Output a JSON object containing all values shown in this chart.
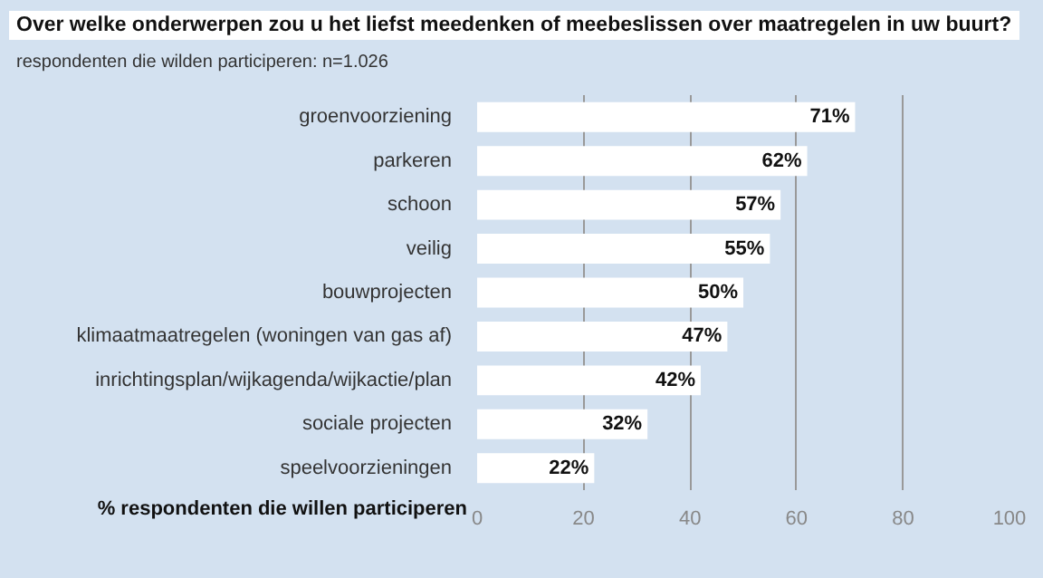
{
  "chart_data": {
    "type": "bar",
    "orientation": "horizontal",
    "title": "Over welke onderwerpen zou u het liefst meedenken of meebeslissen over maatregelen in uw buurt?",
    "subtitle": "respondenten die wilden participeren: n=1.026",
    "xlabel": "% respondenten die willen participeren",
    "categories": [
      "groenvoorziening",
      "parkeren",
      "schoon",
      "veilig",
      "bouwprojecten",
      "klimaatmaatregelen (woningen van gas af)",
      "inrichtingsplan/wijkagenda/wijkactie/plan",
      "sociale projecten",
      "speelvoorzieningen"
    ],
    "values": [
      71,
      62,
      57,
      55,
      50,
      47,
      42,
      32,
      22
    ],
    "value_labels": [
      "71%",
      "62%",
      "57%",
      "55%",
      "50%",
      "47%",
      "42%",
      "32%",
      "22%"
    ],
    "color": "#ffffff",
    "xlim": [
      0,
      100
    ],
    "xticks": [
      0,
      20,
      40,
      60,
      80,
      100
    ],
    "grid": "x"
  }
}
